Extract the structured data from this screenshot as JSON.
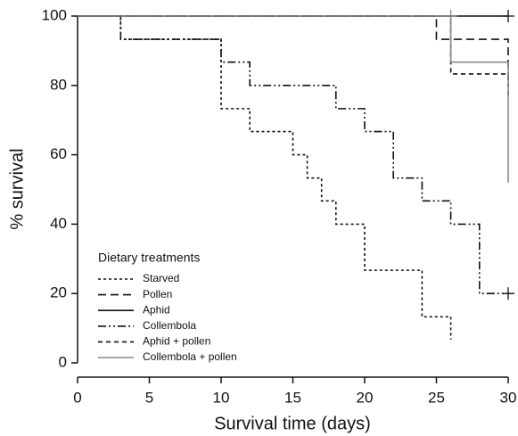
{
  "chart_data": {
    "type": "step",
    "xlabel": "Survival time (days)",
    "ylabel": "% survival",
    "legend_title": "Dietary treatments",
    "xlim": [
      0,
      30
    ],
    "xticks": [
      0,
      5,
      10,
      15,
      20,
      25,
      30
    ],
    "ylim": [
      0,
      100
    ],
    "yticks": [
      0,
      20,
      40,
      60,
      80,
      100
    ],
    "legend": "lower left",
    "series": [
      {
        "name": "Starved",
        "color": "#111111",
        "dash": "3,3",
        "x": [
          0,
          3,
          3,
          10,
          10,
          12,
          12,
          15,
          15,
          16,
          16,
          17,
          17,
          18,
          18,
          20,
          20,
          24,
          24,
          26,
          26
        ],
        "values": [
          100,
          100,
          93.3,
          93.3,
          73.3,
          73.3,
          66.7,
          66.7,
          60,
          60,
          53.3,
          53.3,
          46.7,
          46.7,
          40,
          40,
          26.7,
          26.7,
          13.3,
          13.3,
          6.7
        ]
      },
      {
        "name": "Pollen",
        "color": "#111111",
        "dash": "9,5",
        "x": [
          0,
          25,
          25,
          30,
          30
        ],
        "values": [
          100,
          100,
          93.3,
          93.3,
          80
        ]
      },
      {
        "name": "Aphid",
        "color": "#111111",
        "dash": "none",
        "x": [
          0,
          30
        ],
        "values": [
          100,
          100
        ],
        "censored_x": [
          30
        ],
        "censored_values": [
          100
        ]
      },
      {
        "name": "Collembola",
        "color": "#111111",
        "dash": "9,3,2,3,2,3",
        "x": [
          0,
          3,
          3,
          10,
          10,
          12,
          12,
          18,
          18,
          20,
          20,
          22,
          22,
          24,
          24,
          26,
          26,
          28,
          28,
          30
        ],
        "values": [
          100,
          100,
          93.3,
          93.3,
          86.7,
          86.7,
          80,
          80,
          73.3,
          73.3,
          66.7,
          66.7,
          53.3,
          53.3,
          46.7,
          46.7,
          40,
          40,
          20,
          20
        ],
        "censored_x": [
          30
        ],
        "censored_values": [
          20
        ]
      },
      {
        "name": "Aphid + pollen",
        "color": "#111111",
        "dash": "5,4",
        "x": [
          0,
          26,
          26,
          30,
          30
        ],
        "values": [
          100,
          100,
          83.3,
          83.3,
          77
        ]
      },
      {
        "name": "Collembola + pollen",
        "color": "#888888",
        "dash": "none",
        "x": [
          0,
          26,
          26,
          30,
          30
        ],
        "values": [
          100,
          100,
          86.7,
          86.7,
          52
        ],
        "censored_x": [
          26
        ],
        "censored_values": [
          100
        ]
      }
    ]
  }
}
